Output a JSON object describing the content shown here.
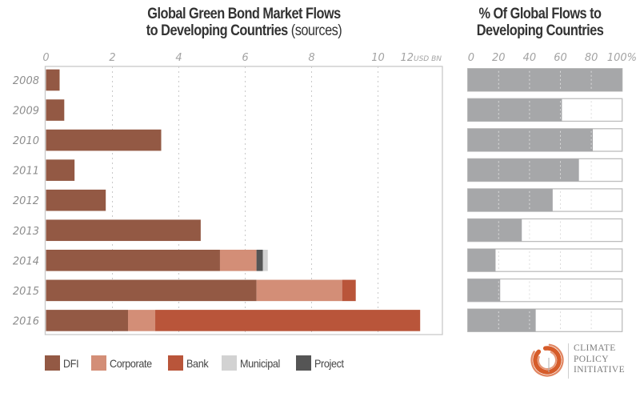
{
  "chart_data": [
    {
      "type": "bar",
      "orientation": "horizontal",
      "stacked": true,
      "title": "Global Green Bond Market Flows to Developing Countries",
      "title_suffix": "(sources)",
      "title_line1": "Global Green Bond Market Flows",
      "title_line2": "to Developing Countries",
      "xlabel": "USD BN",
      "ylabel": "",
      "xlim": [
        0,
        12
      ],
      "xticks": [
        0,
        2,
        4,
        6,
        8,
        10,
        12
      ],
      "xtick_labels": [
        "0",
        "2",
        "4",
        "6",
        "8",
        "10",
        "12"
      ],
      "grid": true,
      "categories": [
        "2008",
        "2009",
        "2010",
        "2011",
        "2012",
        "2013",
        "2014",
        "2015",
        "2016"
      ],
      "series": [
        {
          "name": "DFI",
          "color": "#935944",
          "values": [
            0.41,
            0.55,
            3.47,
            0.86,
            1.8,
            4.66,
            5.24,
            6.34,
            2.47
          ]
        },
        {
          "name": "Corporate",
          "color": "#d38e77",
          "values": [
            0,
            0,
            0,
            0,
            0,
            0,
            1.1,
            2.58,
            0.82
          ]
        },
        {
          "name": "Bank",
          "color": "#b9553a",
          "values": [
            0,
            0,
            0,
            0,
            0,
            0,
            0,
            0.41,
            7.98
          ]
        },
        {
          "name": "Municipal",
          "color": "#d2d2d2",
          "values": [
            0,
            0,
            0,
            0,
            0,
            0,
            0.15,
            0,
            0
          ]
        },
        {
          "name": "Project",
          "color": "#555555",
          "values": [
            0,
            0,
            0,
            0,
            0,
            0,
            0.19,
            0,
            0
          ]
        }
      ],
      "stack_order": [
        "DFI",
        "Corporate",
        "Project",
        "Municipal",
        "Bank"
      ],
      "legend": {
        "placement": "bottom-left",
        "entries": [
          "DFI",
          "Corporate",
          "Bank",
          "Municipal",
          "Project"
        ]
      }
    },
    {
      "type": "bar",
      "orientation": "horizontal",
      "title": "% Of Global Flows to Developing Countries",
      "title_line1": "% Of Global Flows to",
      "title_line2": "Developing Countries",
      "xlabel": "",
      "ylabel": "",
      "xlim": [
        0,
        100
      ],
      "xticks": [
        0,
        20,
        40,
        60,
        80,
        100
      ],
      "xtick_labels": [
        "0",
        "20",
        "40",
        "60",
        "80",
        "100%"
      ],
      "grid": true,
      "categories": [
        "2008",
        "2009",
        "2010",
        "2011",
        "2012",
        "2013",
        "2014",
        "2015",
        "2016"
      ],
      "values": [
        100,
        61,
        81,
        72,
        55,
        35,
        18,
        21,
        44
      ],
      "color": "#a6a7a9"
    }
  ],
  "logo": {
    "lines": [
      "CLIMATE",
      "POLICY",
      "INITIATIVE"
    ],
    "color": "#d4531f"
  }
}
